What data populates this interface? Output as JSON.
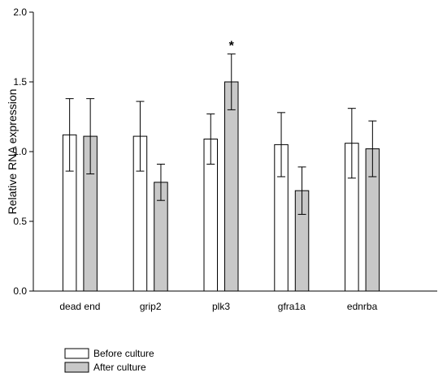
{
  "chart_data": {
    "type": "bar",
    "title": "",
    "xlabel": "",
    "ylabel": "Relative RNA expression",
    "ylim": [
      0,
      2.0
    ],
    "yticks": [
      "0.0",
      "0.5",
      "1.0",
      "1.5",
      "2.0"
    ],
    "grid": false,
    "legend_position": "bottom-left",
    "categories": [
      "dead end",
      "grip2",
      "plk3",
      "gfra1a",
      "ednrba"
    ],
    "series": [
      {
        "name": "Before culture",
        "color": "#ffffff",
        "values": [
          1.12,
          1.11,
          1.09,
          1.05,
          1.06
        ],
        "errors": [
          0.26,
          0.25,
          0.18,
          0.23,
          0.25
        ]
      },
      {
        "name": "After culture",
        "color": "#c8c8c8",
        "values": [
          1.11,
          0.78,
          1.5,
          0.72,
          1.02
        ],
        "errors": [
          0.27,
          0.13,
          0.2,
          0.17,
          0.2
        ]
      }
    ],
    "annotations": [
      {
        "category": "plk3",
        "series": "After culture",
        "text": "*"
      }
    ]
  }
}
